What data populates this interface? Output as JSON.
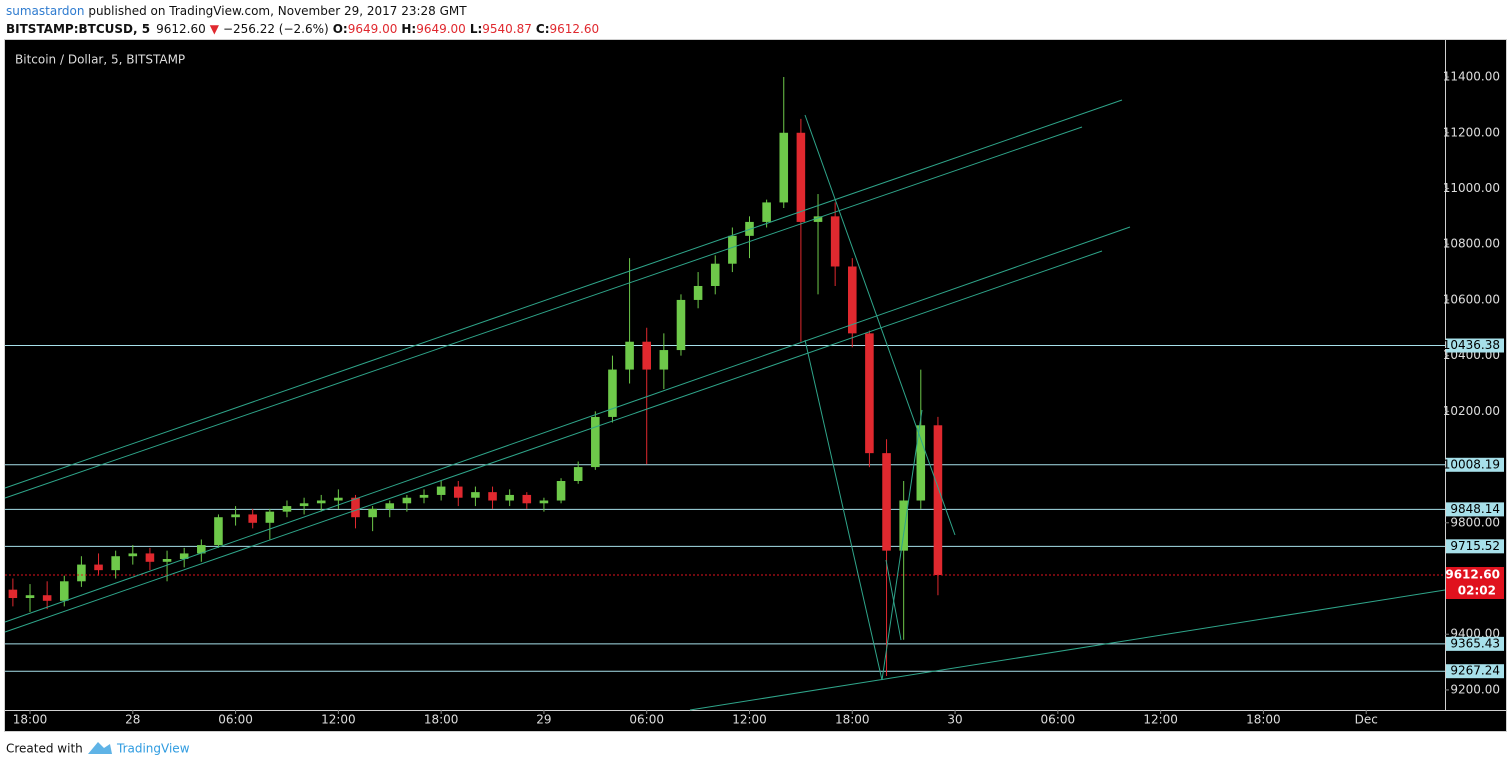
{
  "header": {
    "author": "sumastardon",
    "published": "published on TradingView.com, November 29, 2017 23:28 GMT",
    "symbol": "BITSTAMP:BTCUSD, 5",
    "price": "9612.60",
    "change": "−256.22 (−2.6%)",
    "ohlc": [
      {
        "key": "O:",
        "val": "9649.00"
      },
      {
        "key": "H:",
        "val": "9649.00"
      },
      {
        "key": "L:",
        "val": "9540.87"
      },
      {
        "key": "C:",
        "val": "9612.60"
      }
    ]
  },
  "footer": {
    "created": "Created with",
    "brand": "TradingView"
  },
  "chart_data": {
    "type": "candlestick",
    "title": "Bitcoin / Dollar, 5, BITSTAMP",
    "xlim": [
      -1.46,
      82.6
    ],
    "ylim": [
      9128,
      11533
    ],
    "xticks": [
      {
        "value": 0,
        "label": "18:00"
      },
      {
        "value": 6,
        "label": "28"
      },
      {
        "value": 12,
        "label": "06:00"
      },
      {
        "value": 18,
        "label": "12:00"
      },
      {
        "value": 24,
        "label": "18:00"
      },
      {
        "value": 30,
        "label": "29"
      },
      {
        "value": 36,
        "label": "06:00"
      },
      {
        "value": 42,
        "label": "12:00"
      },
      {
        "value": 48,
        "label": "18:00"
      },
      {
        "value": 54,
        "label": "30"
      },
      {
        "value": 60,
        "label": "06:00"
      },
      {
        "value": 66,
        "label": "12:00"
      },
      {
        "value": 72,
        "label": "18:00"
      },
      {
        "value": 78,
        "label": "Dec"
      }
    ],
    "yticks": [
      {
        "value": 9200,
        "label": "9200.00"
      },
      {
        "value": 9400,
        "label": "9400.00"
      },
      {
        "value": 9800,
        "label": "9800.00"
      },
      {
        "value": 10200,
        "label": "10200.00"
      },
      {
        "value": 10400,
        "label": "10400.00"
      },
      {
        "value": 10600,
        "label": "10600.00"
      },
      {
        "value": 10800,
        "label": "10800.00"
      },
      {
        "value": 11000,
        "label": "11000.00"
      },
      {
        "value": 11200,
        "label": "11200.00"
      },
      {
        "value": 11400,
        "label": "11400.00"
      }
    ],
    "x": [
      -1,
      0,
      1,
      2,
      3,
      4,
      5,
      6,
      7,
      8,
      9,
      10,
      11,
      12,
      13,
      14,
      15,
      16,
      17,
      18,
      19,
      20,
      21,
      22,
      23,
      24,
      25,
      26,
      27,
      28,
      29,
      30,
      31,
      32,
      33,
      34,
      35,
      36,
      37,
      38,
      39,
      40,
      41,
      42,
      43,
      44,
      45,
      46,
      47,
      48,
      49,
      50,
      51,
      52,
      53
    ],
    "open": [
      9560,
      9530,
      9540,
      9520,
      9590,
      9650,
      9630,
      9680,
      9690,
      9660,
      9670,
      9690,
      9720,
      9820,
      9830,
      9800,
      9840,
      9860,
      9870,
      9880,
      9890,
      9820,
      9850,
      9870,
      9890,
      9900,
      9930,
      9890,
      9910,
      9880,
      9900,
      9870,
      9880,
      9950,
      10000,
      10180,
      10350,
      10450,
      10350,
      10420,
      10600,
      10650,
      10730,
      10830,
      10880,
      10950,
      11200,
      10880,
      10900,
      10720,
      10480,
      10050,
      9700,
      9880,
      10150
    ],
    "high": [
      9600,
      9580,
      9590,
      9610,
      9680,
      9690,
      9700,
      9720,
      9710,
      9700,
      9710,
      9740,
      9830,
      9860,
      9850,
      9850,
      9880,
      9890,
      9900,
      9920,
      9900,
      9860,
      9880,
      9900,
      9920,
      9950,
      9950,
      9930,
      9930,
      9920,
      9910,
      9890,
      9960,
      10020,
      10200,
      10400,
      10750,
      10500,
      10480,
      10620,
      10700,
      10760,
      10860,
      10900,
      10960,
      11400,
      11250,
      10980,
      10950,
      10750,
      10490,
      10100,
      9950,
      10350,
      10180
    ],
    "low": [
      9500,
      9480,
      9490,
      9500,
      9570,
      9610,
      9600,
      9650,
      9630,
      9590,
      9640,
      9660,
      9710,
      9790,
      9780,
      9740,
      9820,
      9830,
      9840,
      9850,
      9780,
      9770,
      9820,
      9840,
      9870,
      9880,
      9860,
      9860,
      9850,
      9860,
      9850,
      9840,
      9870,
      9940,
      9990,
      10160,
      10300,
      10010,
      10280,
      10400,
      10570,
      10620,
      10700,
      10750,
      10860,
      10930,
      10450,
      10620,
      10650,
      10430,
      10000,
      9250,
      9380,
      9850,
      9540
    ],
    "close": [
      9530,
      9540,
      9520,
      9590,
      9650,
      9630,
      9680,
      9690,
      9660,
      9670,
      9690,
      9720,
      9820,
      9830,
      9800,
      9840,
      9860,
      9870,
      9880,
      9890,
      9820,
      9850,
      9870,
      9890,
      9900,
      9930,
      9890,
      9910,
      9880,
      9900,
      9870,
      9880,
      9950,
      10000,
      10180,
      10350,
      10450,
      10350,
      10420,
      10600,
      10650,
      10730,
      10830,
      10880,
      10950,
      11200,
      10880,
      10900,
      10720,
      10480,
      10050,
      9700,
      9880,
      10150,
      9612.6
    ],
    "up_color": "#6ec94a",
    "down_color": "#e0292f",
    "levels": [
      10436.38,
      10008.19,
      9848.14,
      9715.52,
      9365.43,
      9267.24
    ],
    "level_color": "#a7e0ea",
    "last_price": {
      "value": 9612.6,
      "label": "9612.60"
    },
    "countdown": "02:02",
    "last_color": "#e0121e"
  }
}
